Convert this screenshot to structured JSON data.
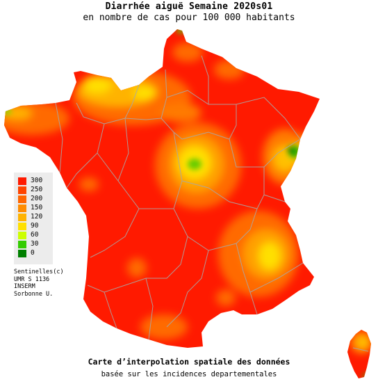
{
  "header": {
    "title": "Diarrhée aiguë Semaine 2020s01",
    "subtitle": "en nombre de cas pour 100 000 habitants"
  },
  "legend": {
    "items": [
      {
        "label": "300",
        "color": "#ff1a00"
      },
      {
        "label": "250",
        "color": "#ff4400"
      },
      {
        "label": "200",
        "color": "#ff6600"
      },
      {
        "label": "150",
        "color": "#ff8c00"
      },
      {
        "label": "120",
        "color": "#ffb300"
      },
      {
        "label": "90",
        "color": "#ffe000"
      },
      {
        "label": "60",
        "color": "#ccff00"
      },
      {
        "label": "30",
        "color": "#33cc00"
      },
      {
        "label": "0",
        "color": "#008000"
      }
    ]
  },
  "credits": {
    "line1": "Sentinelles(c)",
    "line2": "UMR S 1136",
    "line3": "INSERM",
    "line4": "Sorbonne U."
  },
  "footer": {
    "caption": "Carte d’interpolation spatiale des données",
    "subcaption": "basée sur les incidences departementales"
  },
  "colors": {
    "base": "#ff1a00",
    "border": "#a0a0a0"
  }
}
